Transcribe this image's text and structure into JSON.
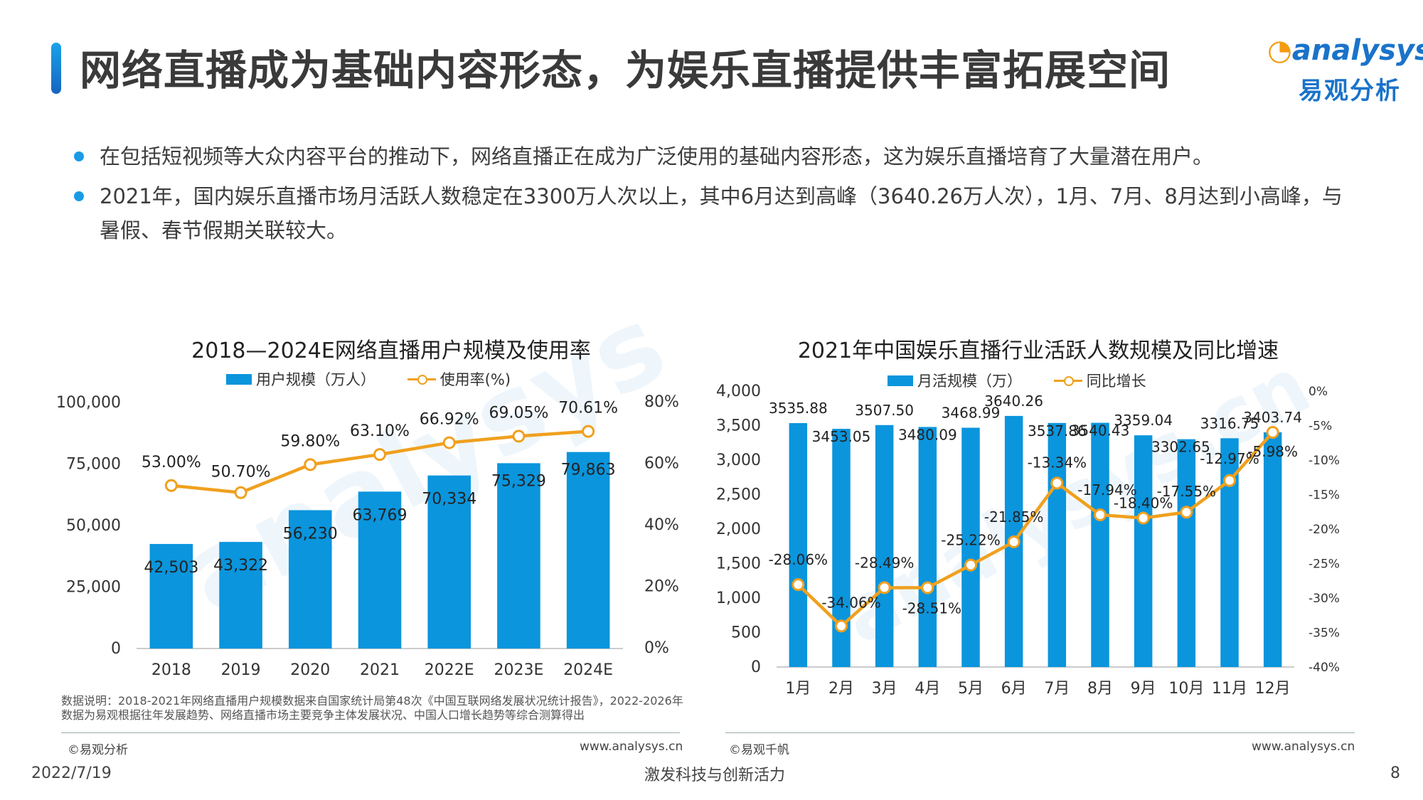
{
  "header": {
    "title": "网络直播成为基础内容形态，为娱乐直播提供丰富拓展空间",
    "logo_en": "analysys",
    "logo_cn": "易观分析"
  },
  "bullets": [
    "在包括短视频等大众内容平台的推动下，网络直播正在成为广泛使用的基础内容形态，这为娱乐直播培育了大量潜在用户。",
    "2021年，国内娱乐直播市场月活跃人数稳定在3300万人次以上，其中6月达到高峰（3640.26万人次），1月、7月、8月达到小高峰，与暑假、春节假期关联较大。"
  ],
  "chart_data": [
    {
      "type": "bar",
      "title": "2018—2024E网络直播用户规模及使用率",
      "categories": [
        "2018",
        "2019",
        "2020",
        "2021",
        "2022E",
        "2023E",
        "2024E"
      ],
      "series": [
        {
          "name": "用户规模（万人）",
          "type": "bar",
          "axis": "left",
          "values": [
            42503,
            43322,
            56230,
            63769,
            70334,
            75329,
            79863
          ],
          "labels": [
            "42,503",
            "43,322",
            "56,230",
            "63,769",
            "70,334",
            "75,329",
            "79,863"
          ]
        },
        {
          "name": "使用率(%)",
          "type": "line",
          "axis": "right",
          "values": [
            53.0,
            50.7,
            59.8,
            63.1,
            66.92,
            69.05,
            70.61
          ],
          "labels": [
            "53.00%",
            "50.70%",
            "59.80%",
            "63.10%",
            "66.92%",
            "69.05%",
            "70.61%"
          ]
        }
      ],
      "ylim": [
        0,
        100000
      ],
      "y_ticks": [
        "0",
        "25,000",
        "50,000",
        "75,000",
        "100,000"
      ],
      "y2lim": [
        0,
        80
      ],
      "y2_ticks": [
        "0%",
        "20%",
        "40%",
        "60%",
        "80%"
      ],
      "legend": "top",
      "grid": false,
      "colors": {
        "bar": "#0a95dd",
        "line": "#f0a01e"
      }
    },
    {
      "type": "bar",
      "title": "2021年中国娱乐直播行业活跃人数规模及同比增速",
      "categories": [
        "1月",
        "2月",
        "3月",
        "4月",
        "5月",
        "6月",
        "7月",
        "8月",
        "9月",
        "10月",
        "11月",
        "12月"
      ],
      "series": [
        {
          "name": "月活规模（万）",
          "type": "bar",
          "axis": "left",
          "values": [
            3535.88,
            3453.05,
            3507.5,
            3480.09,
            3468.99,
            3640.26,
            3537.86,
            3540.43,
            3359.04,
            3302.65,
            3316.75,
            3403.74
          ],
          "labels": [
            "3535.88",
            "3453.05",
            "3507.50",
            "3480.09",
            "3468.99",
            "3640.26",
            "3537.86",
            "3540.43",
            "3359.04",
            "3302.65",
            "3316.75",
            "3403.74"
          ]
        },
        {
          "name": "同比增长",
          "type": "line",
          "axis": "right",
          "values": [
            -28.06,
            -34.06,
            -28.49,
            -28.51,
            -25.22,
            -21.85,
            -13.34,
            -17.94,
            -18.4,
            -17.55,
            -12.97,
            -5.98
          ],
          "labels": [
            "-28.06%",
            "-34.06%",
            "-28.49%",
            "-28.51%",
            "-25.22%",
            "-21.85%",
            "-13.34%",
            "-17.94%",
            "-18.40%",
            "-17.55%",
            "-12.97%",
            "-5.98%"
          ]
        }
      ],
      "ylim": [
        0,
        4000
      ],
      "y_ticks": [
        "0",
        "500",
        "1,000",
        "1,500",
        "2,000",
        "2,500",
        "3,000",
        "3,500",
        "4,000"
      ],
      "y2lim": [
        -40,
        0
      ],
      "y2_ticks": [
        "-40%",
        "-35%",
        "-30%",
        "-25%",
        "-20%",
        "-15%",
        "-10%",
        "-5%",
        "0%"
      ],
      "legend": "top",
      "grid": false,
      "colors": {
        "bar": "#0a95dd",
        "line": "#f0a01e"
      }
    }
  ],
  "footer": {
    "note": "数据说明：2018-2021年网络直播用户规模数据来自国家统计局第48次《中国互联网络发展状况统计报告》，2022-2026年数据为易观根据往年发展趋势、网络直播市场主要竞争主体发展状况、中国人口增长趋势等综合测算得出",
    "left_source": "©易观分析",
    "left_url": "www.analysys.cn",
    "right_source": "©易观千帆",
    "right_url": "www.analysys.cn",
    "date": "2022/7/19",
    "slogan": "激发科技与创新活力",
    "page": "8"
  }
}
